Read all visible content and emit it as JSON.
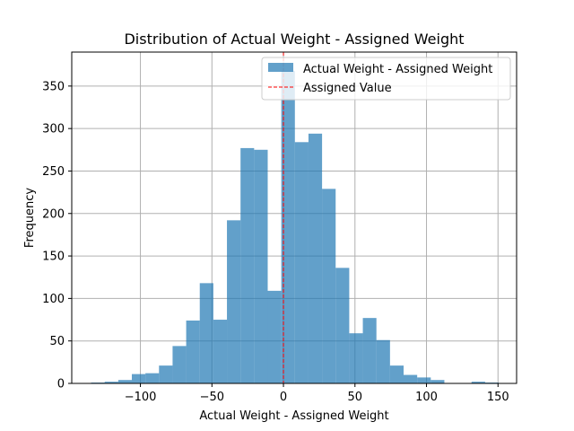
{
  "chart_data": {
    "type": "bar",
    "subtype": "histogram",
    "title": "Distribution of Actual Weight - Assigned Weight",
    "xlabel": "Actual Weight - Assigned Weight",
    "ylabel": "Frequency",
    "xlim": [
      -148,
      163
    ],
    "ylim": [
      0,
      390
    ],
    "xticks": [
      -100,
      -50,
      0,
      50,
      100,
      150
    ],
    "yticks": [
      0,
      50,
      100,
      150,
      200,
      250,
      300,
      350
    ],
    "grid": true,
    "legend_position": "upper right",
    "bar_color": "#1f77b4",
    "bar_alpha": 0.7,
    "series": [
      {
        "name": "Actual Weight - Assigned Weight",
        "bins": [
          [
            -134.5,
            -125,
            1
          ],
          [
            -125,
            -115.5,
            2
          ],
          [
            -115.5,
            -106,
            4
          ],
          [
            -106,
            -96.5,
            11
          ],
          [
            -96.5,
            -87,
            12
          ],
          [
            -87,
            -77.5,
            21
          ],
          [
            -77.5,
            -68,
            44
          ],
          [
            -68,
            -58.5,
            74
          ],
          [
            -58.5,
            -49,
            118
          ],
          [
            -49,
            -39.5,
            75
          ],
          [
            -39.5,
            -30,
            192
          ],
          [
            -30,
            -20.5,
            277
          ],
          [
            -20.5,
            -11,
            275
          ],
          [
            -11,
            -1.5,
            109
          ],
          [
            -1.5,
            8,
            368
          ],
          [
            8,
            17.5,
            284
          ],
          [
            17.5,
            27,
            294
          ],
          [
            27,
            36.5,
            229
          ],
          [
            36.5,
            46,
            136
          ],
          [
            46,
            55.5,
            59
          ],
          [
            55.5,
            65,
            77
          ],
          [
            65,
            74.5,
            51
          ],
          [
            74.5,
            84,
            21
          ],
          [
            84,
            93.5,
            10
          ],
          [
            93.5,
            103,
            7
          ],
          [
            103,
            112.5,
            4
          ],
          [
            112.5,
            122,
            0
          ],
          [
            122,
            131.5,
            0
          ],
          [
            131.5,
            141,
            2
          ],
          [
            141,
            150.5,
            1
          ]
        ]
      }
    ],
    "reference_line": {
      "name": "Assigned Value",
      "x": 0,
      "color": "#ff0000",
      "style": "dashed"
    }
  }
}
